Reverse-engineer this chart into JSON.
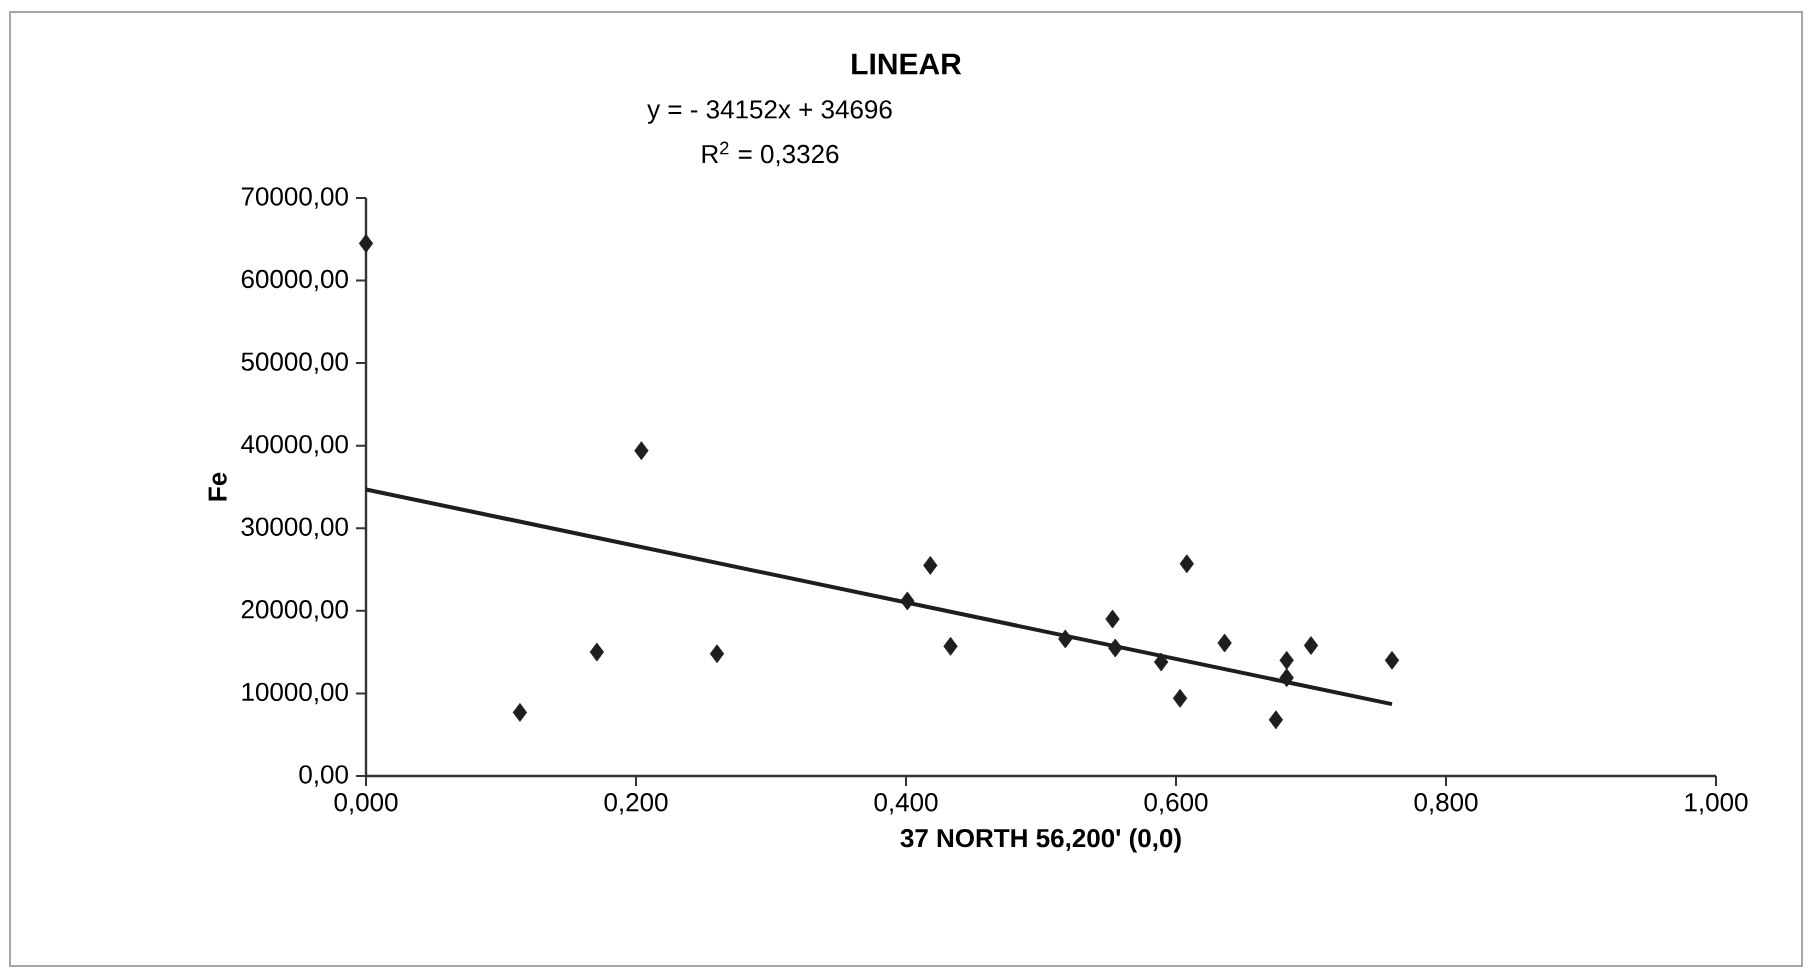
{
  "chart_data": {
    "type": "scatter",
    "title": "LINEAR",
    "xlabel": "37 NORTH 56,200' (0,0)",
    "ylabel": "Fe",
    "annotations": [
      "y = - 34152x + 34696",
      "R$^{2}$ = 0,3326"
    ],
    "grid": false,
    "xlim": [
      0,
      1
    ],
    "ylim": [
      0,
      70000
    ],
    "xticks": [
      {
        "value": 0,
        "label": "0,000"
      },
      {
        "value": 0.2,
        "label": "0,200"
      },
      {
        "value": 0.4,
        "label": "0,400"
      },
      {
        "value": 0.6,
        "label": "0,600"
      },
      {
        "value": 0.8,
        "label": "0,800"
      },
      {
        "value": 1,
        "label": "1,000"
      }
    ],
    "yticks": [
      {
        "value": 0,
        "label": "0,00"
      },
      {
        "value": 10000,
        "label": "10000,00"
      },
      {
        "value": 20000,
        "label": "20000,00"
      },
      {
        "value": 30000,
        "label": "30000,00"
      },
      {
        "value": 40000,
        "label": "40000,00"
      },
      {
        "value": 50000,
        "label": "50000,00"
      },
      {
        "value": 60000,
        "label": "60000,00"
      },
      {
        "value": 70000,
        "label": "70000,00"
      }
    ],
    "series": [
      {
        "marker": "diamond",
        "color": "#1e1e1e",
        "x": [
          0.0,
          0.114,
          0.171,
          0.204,
          0.26,
          0.401,
          0.418,
          0.433,
          0.518,
          0.553,
          0.555,
          0.589,
          0.603,
          0.608,
          0.636,
          0.674,
          0.682,
          0.682,
          0.7,
          0.76
        ],
        "values": [
          64500,
          7700,
          15000,
          39400,
          14800,
          21200,
          25500,
          15700,
          16600,
          19000,
          15500,
          13800,
          9400,
          25700,
          16100,
          6800,
          14000,
          11900,
          15800,
          14000
        ]
      },
      {
        "type": "line",
        "marker": "none",
        "color": "#1e1e1e",
        "x": [
          0,
          0.76
        ],
        "values": [
          34700,
          8700
        ]
      }
    ]
  }
}
